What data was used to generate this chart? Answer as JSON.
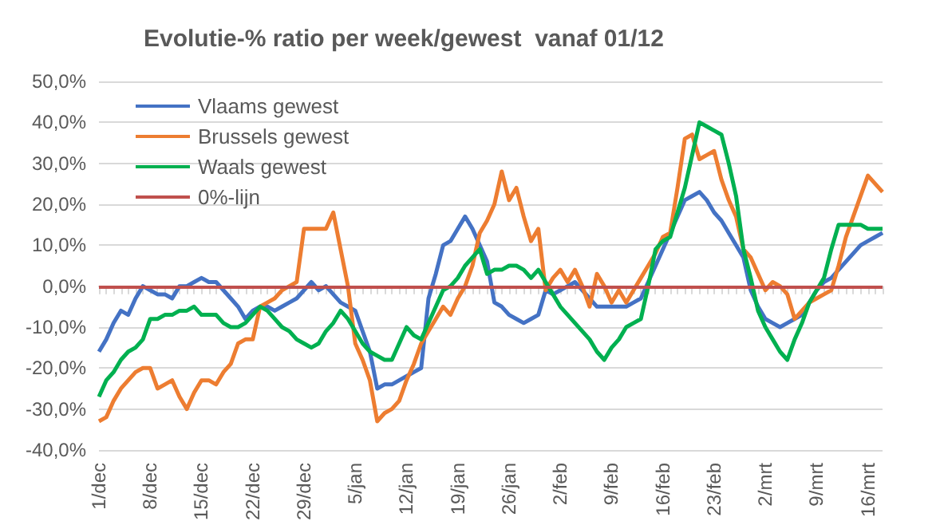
{
  "chart_data": {
    "type": "line",
    "title": "Evolutie-% ratio per week/gewest  vanaf 01/12",
    "categories": [
      "1/dec",
      null,
      null,
      null,
      null,
      null,
      null,
      "8/dec",
      null,
      null,
      null,
      null,
      null,
      null,
      "15/dec",
      null,
      null,
      null,
      null,
      null,
      null,
      "22/dec",
      null,
      null,
      null,
      null,
      null,
      null,
      "29/dec",
      null,
      null,
      null,
      null,
      null,
      null,
      "5/jan",
      null,
      null,
      null,
      null,
      null,
      null,
      "12/jan",
      null,
      null,
      null,
      null,
      null,
      null,
      "19/jan",
      null,
      null,
      null,
      null,
      null,
      null,
      "26/jan",
      null,
      null,
      null,
      null,
      null,
      null,
      "2/feb",
      null,
      null,
      null,
      null,
      null,
      null,
      "9/feb",
      null,
      null,
      null,
      null,
      null,
      null,
      "16/feb",
      null,
      null,
      null,
      null,
      null,
      null,
      "23/feb",
      null,
      null,
      null,
      null,
      null,
      null,
      "2/mrt",
      null,
      null,
      null,
      null,
      null,
      null,
      "9/mrt",
      null,
      null,
      null,
      null,
      null,
      null,
      "16/mrt",
      null,
      null
    ],
    "series": [
      {
        "name": "Vlaams gewest",
        "color": "#4472c4",
        "values": [
          -16,
          -13,
          -9,
          -6,
          -7,
          -3,
          0,
          -1,
          -2,
          -2,
          -3,
          0,
          0,
          1,
          2,
          1,
          1,
          -1,
          -3,
          -5,
          -8,
          -6,
          -5,
          -5,
          -6,
          -5,
          -4,
          -3,
          -1,
          1,
          -1,
          0,
          -2,
          -4,
          -5,
          -6,
          -11,
          -16,
          -25,
          -24,
          -24,
          -23,
          -22,
          -21,
          -20,
          -3,
          3,
          10,
          11,
          14,
          17,
          14,
          10,
          6,
          -4,
          -5,
          -7,
          -8,
          -9,
          -8,
          -7,
          -1,
          -2,
          -1,
          0,
          1,
          -1,
          -3,
          -5,
          -5,
          -5,
          -5,
          -5,
          -4,
          -3,
          1,
          5,
          9,
          13,
          17,
          21,
          22,
          23,
          21,
          18,
          16,
          13,
          10,
          7,
          -1,
          -5,
          -8,
          -9,
          -10,
          -9,
          -8,
          -7,
          -4,
          -1,
          1,
          2,
          4,
          6,
          8,
          10,
          11,
          12,
          13
        ]
      },
      {
        "name": "Brussels gewest",
        "color": "#ed7d31",
        "values": [
          -33,
          -32,
          -28,
          -25,
          -23,
          -21,
          -20,
          -20,
          -25,
          -24,
          -23,
          -27,
          -30,
          -26,
          -23,
          -23,
          -24,
          -21,
          -19,
          -14,
          -13,
          -13,
          -5,
          -4,
          -3,
          -1,
          0,
          1,
          14,
          14,
          14,
          14,
          18,
          9,
          0,
          -14,
          -18,
          -23,
          -33,
          -31,
          -30,
          -28,
          -23,
          -19,
          -14,
          -11,
          -8,
          -5,
          -7,
          -3,
          0,
          5,
          13,
          16,
          20,
          28,
          21,
          24,
          17,
          11,
          14,
          -1,
          2,
          4,
          1,
          4,
          0,
          -5,
          3,
          0,
          -4,
          -1,
          -4,
          -1,
          2,
          5,
          8,
          12,
          13,
          24,
          36,
          37,
          31,
          32,
          33,
          26,
          21,
          17,
          9,
          7,
          3,
          -1,
          1,
          0,
          -2,
          -8,
          -6,
          -4,
          -3,
          -2,
          -1,
          5,
          12,
          17,
          22,
          27,
          25,
          23
        ]
      },
      {
        "name": "Waals gewest",
        "color": "#00b050",
        "values": [
          -27,
          -23,
          -21,
          -18,
          -16,
          -15,
          -13,
          -8,
          -8,
          -7,
          -7,
          -6,
          -6,
          -5,
          -7,
          -7,
          -7,
          -9,
          -10,
          -10,
          -9,
          -7,
          -5,
          -6,
          -8,
          -10,
          -11,
          -13,
          -14,
          -15,
          -14,
          -11,
          -9,
          -6,
          -8,
          -11,
          -14,
          -16,
          -17,
          -18,
          -18,
          -14,
          -10,
          -12,
          -13,
          -9,
          -5,
          -1,
          0,
          2,
          5,
          7,
          9,
          3,
          4,
          4,
          5,
          5,
          4,
          2,
          4,
          1,
          -2,
          -5,
          -7,
          -9,
          -11,
          -13,
          -16,
          -18,
          -15,
          -13,
          -10,
          -9,
          -8,
          0,
          9,
          11,
          12,
          18,
          24,
          32,
          40,
          39,
          38,
          37,
          30,
          22,
          9,
          2,
          -6,
          -10,
          -13,
          -16,
          -18,
          -13,
          -9,
          -4,
          -1,
          2,
          9,
          15,
          15,
          15,
          15,
          14,
          14,
          14
        ]
      }
    ],
    "ref_lines": [
      {
        "axis": "y",
        "value": 0,
        "label": "0%-lijn",
        "color": "#c0504d"
      }
    ],
    "ylim": [
      -40,
      50
    ],
    "yticks": [
      {
        "value": -40,
        "label": "-40,0%"
      },
      {
        "value": -30,
        "label": "-30,0%"
      },
      {
        "value": -20,
        "label": "-20,0%"
      },
      {
        "value": -10,
        "label": "-10,0%"
      },
      {
        "value": 0,
        "label": "0,0%"
      },
      {
        "value": 10,
        "label": "10,0%"
      },
      {
        "value": 20,
        "label": "20,0%"
      },
      {
        "value": 30,
        "label": "30,0%"
      },
      {
        "value": 40,
        "label": "40,0%"
      },
      {
        "value": 50,
        "label": "50,0%"
      }
    ],
    "grid": "y",
    "legend": "top left",
    "marker": "none",
    "line_style": "solid"
  }
}
